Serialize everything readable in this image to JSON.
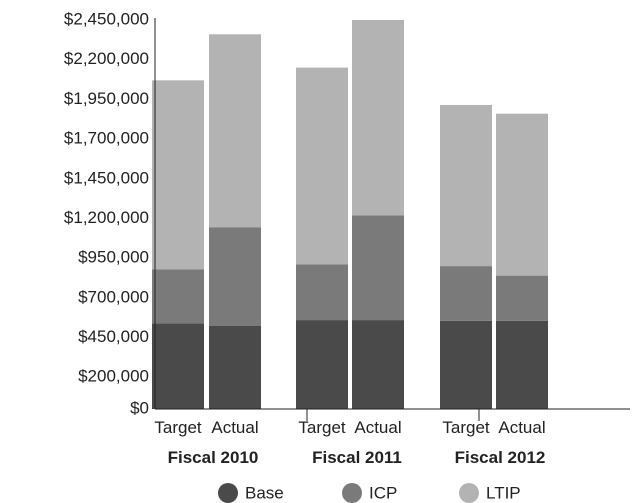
{
  "chart_data": {
    "type": "bar",
    "stacked": true,
    "categories": [
      "Target",
      "Actual",
      "Target",
      "Actual",
      "Target",
      "Actual"
    ],
    "groups": [
      {
        "label": "Fiscal 2010",
        "categories": [
          0,
          1
        ]
      },
      {
        "label": "Fiscal 2011",
        "categories": [
          2,
          3
        ]
      },
      {
        "label": "Fiscal 2012",
        "categories": [
          4,
          5
        ]
      }
    ],
    "series": [
      {
        "name": "Base",
        "color": "#4a4a4a",
        "values": [
          540000,
          525000,
          560000,
          560000,
          555000,
          555000
        ]
      },
      {
        "name": "ICP",
        "color": "#7a7a7a",
        "values": [
          340000,
          620000,
          350000,
          660000,
          345000,
          285000
        ]
      },
      {
        "name": "LTIP",
        "color": "#b3b3b3",
        "values": [
          1190000,
          1215000,
          1240000,
          1230000,
          1015000,
          1020000
        ]
      }
    ],
    "ylim": [
      0,
      2450000
    ],
    "yticks": [
      0,
      200000,
      450000,
      700000,
      950000,
      1200000,
      1450000,
      1700000,
      1950000,
      2200000,
      2450000
    ],
    "ytick_labels": [
      "$0",
      "$200,000",
      "$450,000",
      "$700,000",
      "$950,000",
      "$1,200,000",
      "$1,450,000",
      "$1,700,000",
      "$1,950,000",
      "$2,200,000",
      "$2,450,000"
    ],
    "legend_position": "bottom",
    "grid": false
  }
}
